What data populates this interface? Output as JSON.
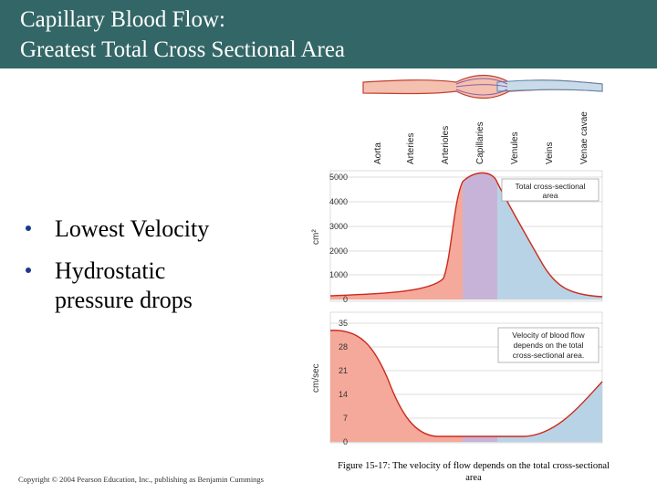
{
  "title": {
    "line1": "Capillary Blood Flow:",
    "line2": "Greatest Total Cross Sectional Area"
  },
  "bullets": [
    {
      "text": "Lowest Velocity"
    },
    {
      "text_line1": "Hydrostatic",
      "text_line2": "pressure drops"
    }
  ],
  "figure": {
    "vessel_labels": [
      "Aorta",
      "Arteries",
      "Arterioles",
      "Capillaries",
      "Venules",
      "Veins",
      "Venae cavae"
    ],
    "top_chart": {
      "ylabel": "cm²",
      "ticks": [
        "5000",
        "4000",
        "3000",
        "2000",
        "1000",
        "0"
      ],
      "legend_line1": "Total cross-sectional",
      "legend_line2": "area"
    },
    "bottom_chart": {
      "ylabel": "cm/sec",
      "ticks": [
        "35",
        "28",
        "21",
        "14",
        "7",
        "0"
      ],
      "legend_line1": "Velocity of blood flow",
      "legend_line2": "depends on the total",
      "legend_line3": "cross-sectional area."
    },
    "colors": {
      "arterial": "#f4a99a",
      "capillary": "#c8b3d8",
      "venous": "#b9d3e6",
      "curve": "#cc2a1e",
      "grid": "#bbbbbb"
    }
  },
  "copyright": "Copyright © 2004 Pearson Education, Inc., publishing as Benjamin Cummings",
  "caption": "Figure 15-17: The velocity of flow depends on the total cross-sectional area"
}
